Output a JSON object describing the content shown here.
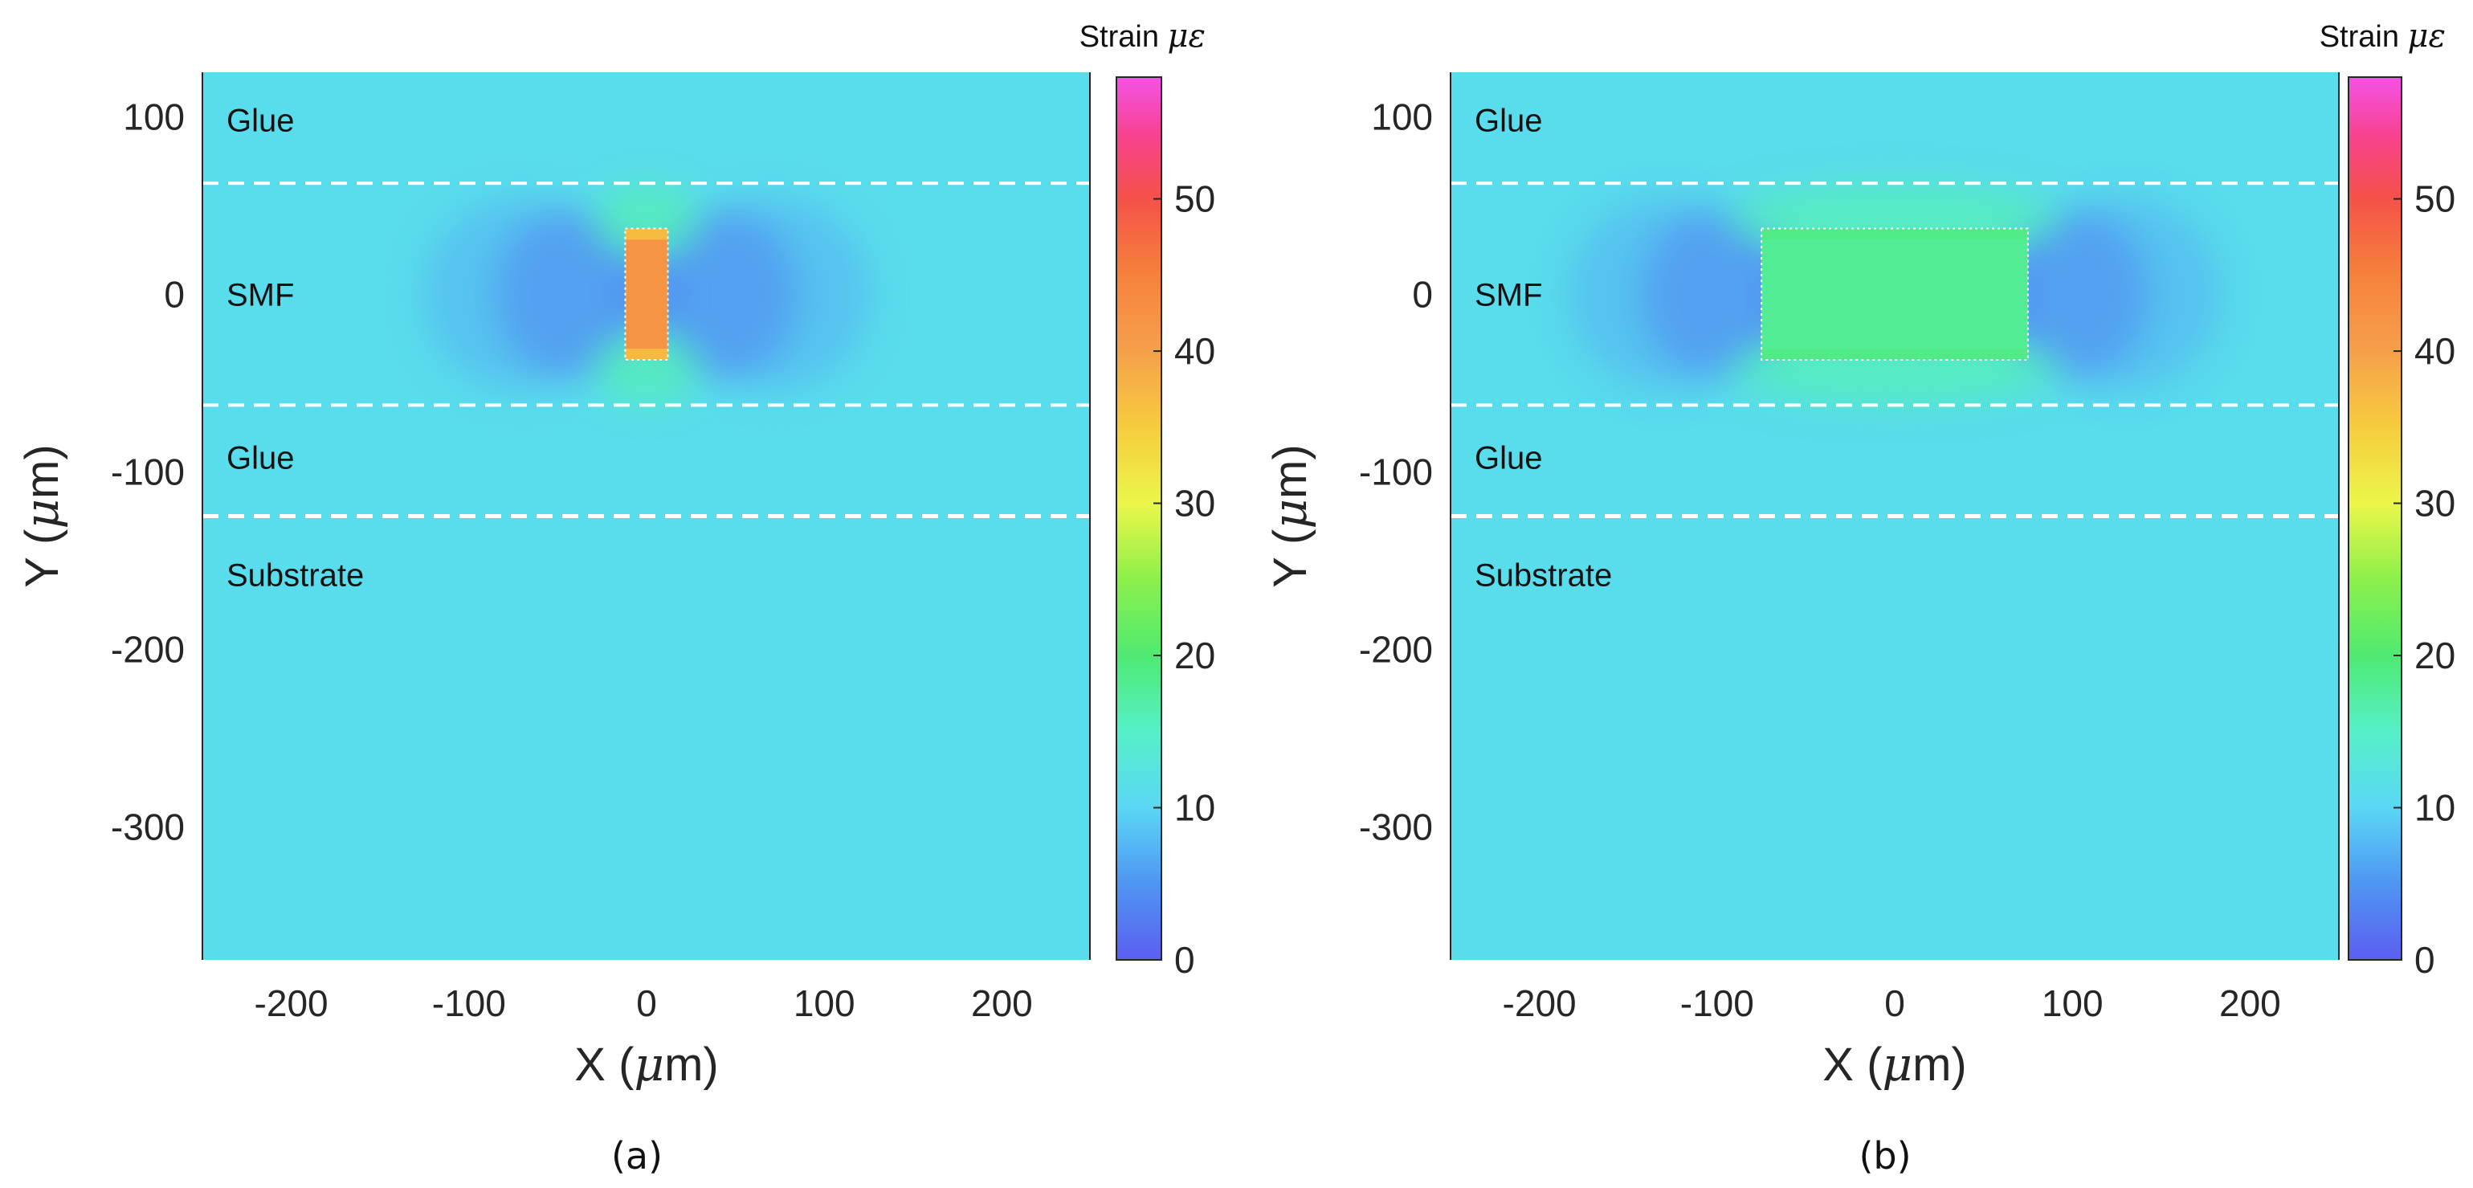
{
  "chart_data": [
    {
      "type": "heatmap",
      "id": "a",
      "caption": "(a)",
      "xlabel_prefix": "X (",
      "xlabel_mu": "μ",
      "xlabel_suffix": "m)",
      "ylabel_prefix": "Y (",
      "ylabel_mu": "μ",
      "ylabel_suffix": "m)",
      "xlim": [
        -250,
        250
      ],
      "ylim": [
        -375,
        125
      ],
      "xticks": [
        -200,
        -100,
        0,
        100,
        200
      ],
      "xtick_labels": [
        "-200",
        "-100",
        "0",
        "100",
        "200"
      ],
      "yticks": [
        100,
        0,
        -100,
        -200,
        -300
      ],
      "ytick_labels": [
        "100",
        "0",
        "-100",
        "-200",
        "-300"
      ],
      "layer_boundaries_y": [
        62.5,
        -62.5,
        -125
      ],
      "region_labels": [
        {
          "text": "Glue",
          "y": 98
        },
        {
          "text": "SMF",
          "y": 0
        },
        {
          "text": "Glue",
          "y": -92
        },
        {
          "text": "Substrate",
          "y": -158
        }
      ],
      "background_strain": 11,
      "inclusion": {
        "x0": -12,
        "x1": 12,
        "y0": -37,
        "y1": 37,
        "strain": 42,
        "edge_strain": 36
      },
      "low_strain_lobes": {
        "x_left": -22,
        "x_right": 22,
        "y": 0,
        "strain": 4
      },
      "colorbar": {
        "title": "Strain",
        "unit": "με",
        "ticks": [
          0,
          10,
          20,
          30,
          40,
          50
        ],
        "tick_labels": [
          "0",
          "10",
          "20",
          "30",
          "40",
          "50"
        ],
        "range": [
          0,
          58
        ]
      }
    },
    {
      "type": "heatmap",
      "id": "b",
      "caption": "(b)",
      "xlabel_prefix": "X (",
      "xlabel_mu": "μ",
      "xlabel_suffix": "m)",
      "ylabel_prefix": "Y (",
      "ylabel_mu": "μ",
      "ylabel_suffix": "m)",
      "xlim": [
        -250,
        250
      ],
      "ylim": [
        -375,
        125
      ],
      "xticks": [
        -200,
        -100,
        0,
        100,
        200
      ],
      "xtick_labels": [
        "-200",
        "-100",
        "0",
        "100",
        "200"
      ],
      "yticks": [
        100,
        0,
        -100,
        -200,
        -300
      ],
      "ytick_labels": [
        "100",
        "0",
        "-100",
        "-200",
        "-300"
      ],
      "layer_boundaries_y": [
        62.5,
        -62.5,
        -125
      ],
      "region_labels": [
        {
          "text": "Glue",
          "y": 98
        },
        {
          "text": "SMF",
          "y": 0
        },
        {
          "text": "Glue",
          "y": -92
        },
        {
          "text": "Substrate",
          "y": -158
        }
      ],
      "background_strain": 11,
      "inclusion": {
        "x0": -75,
        "x1": 75,
        "y0": -37,
        "y1": 37,
        "strain": 18,
        "edge_strain": 19
      },
      "low_strain_lobes": {
        "x_left": -80,
        "x_right": 80,
        "y": 0,
        "strain": 4
      },
      "colorbar": {
        "title": "Strain",
        "unit": "με",
        "ticks": [
          0,
          10,
          20,
          30,
          40,
          50
        ],
        "tick_labels": [
          "0",
          "10",
          "20",
          "30",
          "40",
          "50"
        ],
        "range": [
          0,
          58
        ]
      }
    }
  ]
}
